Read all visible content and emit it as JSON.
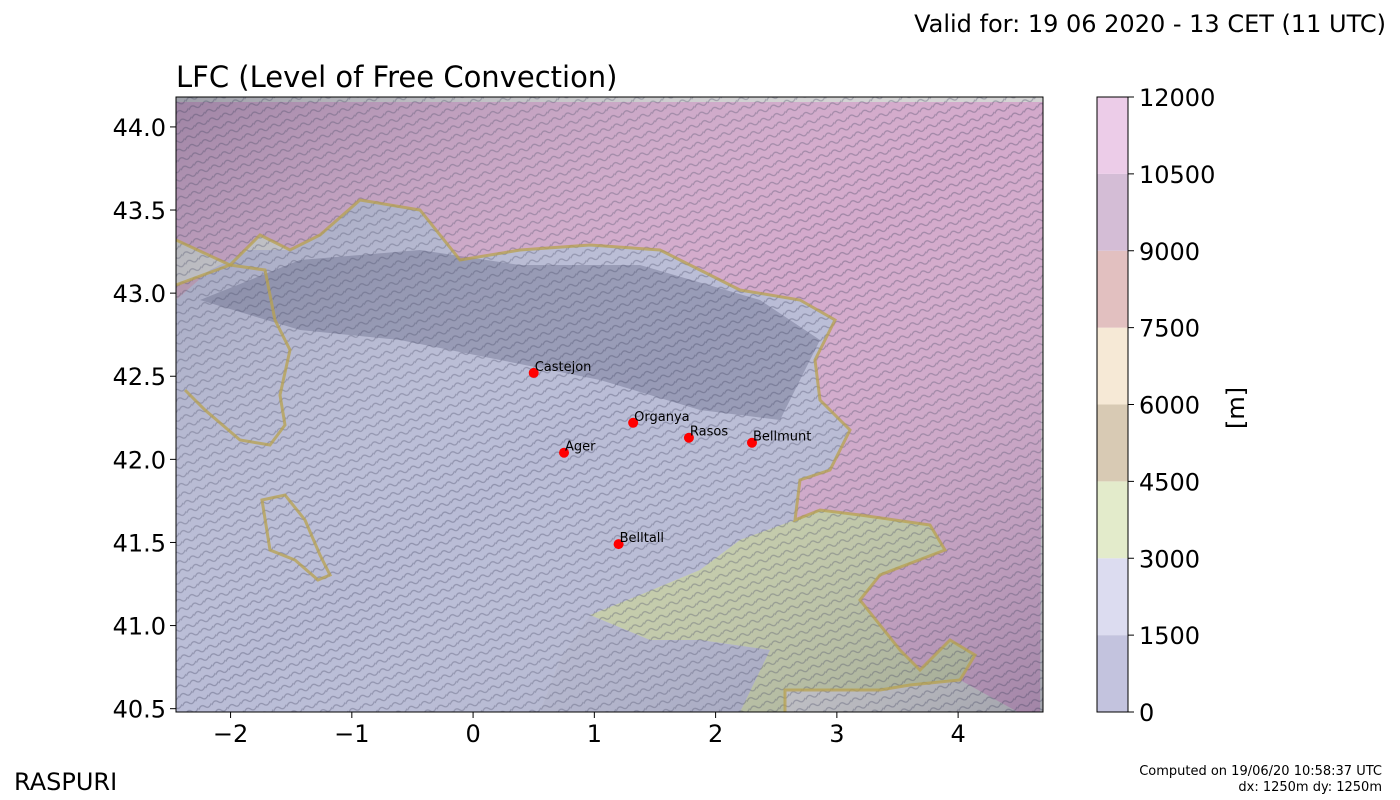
{
  "header": {
    "valid": "Valid for: 19 06 2020 - 13 CET (11 UTC)",
    "title": "LFC (Level of Free Convection)"
  },
  "footer": {
    "brand": "RASPURI",
    "computed": "Computed on 19/06/20 10:58:37 UTC",
    "resolution": "dx: 1250m dy: 1250m"
  },
  "map": {
    "xticks": [
      "−2",
      "−1",
      "0",
      "1",
      "2",
      "3",
      "4"
    ],
    "xtick_values": [
      -2,
      -1,
      0,
      1,
      2,
      3,
      4
    ],
    "yticks": [
      "44.0",
      "43.5",
      "43.0",
      "42.5",
      "42.0",
      "41.5",
      "41.0",
      "40.5"
    ],
    "ytick_values": [
      44.0,
      43.5,
      43.0,
      42.5,
      42.0,
      41.5,
      41.0,
      40.5
    ],
    "xlim": [
      -2.45,
      4.7
    ],
    "ylim": [
      40.48,
      44.18
    ],
    "cities": [
      {
        "name": "Castejon",
        "lon": 0.5,
        "lat": 42.52
      },
      {
        "name": "Organya",
        "lon": 1.32,
        "lat": 42.22
      },
      {
        "name": "Rasos",
        "lon": 1.78,
        "lat": 42.13
      },
      {
        "name": "Bellmunt",
        "lon": 2.3,
        "lat": 42.1
      },
      {
        "name": "Ager",
        "lon": 0.75,
        "lat": 42.04
      },
      {
        "name": "Belltall",
        "lon": 1.2,
        "lat": 41.49
      }
    ],
    "marker_color": "#ff0000"
  },
  "colorbar": {
    "label": "[m]",
    "ticks": [
      "12000",
      "10500",
      "9000",
      "7500",
      "6000",
      "4500",
      "3000",
      "1500",
      "0"
    ],
    "colors": [
      "#c3c3de",
      "#dcdcf0",
      "#e3ebcb",
      "#d8cab4",
      "#f6e9d6",
      "#e2c0c0",
      "#d4bdd6",
      "#eccce8"
    ]
  }
}
